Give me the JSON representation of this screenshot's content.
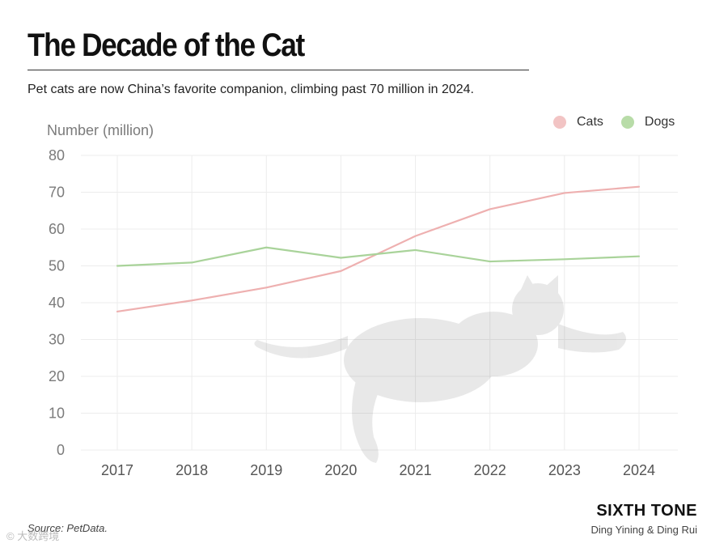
{
  "header": {
    "title": "The Decade of the Cat",
    "subtitle": "Pet cats are now China’s favorite companion, climbing past 70 million in 2024."
  },
  "footer": {
    "source": "Source: PetData.",
    "brand": "SIXTH TONE",
    "authors": "Ding Yining & Ding Rui",
    "watermark": "© 大数跨境"
  },
  "chart_data": {
    "type": "line",
    "ylabel": "Number (million)",
    "xlabel": "",
    "ylim": [
      0,
      80
    ],
    "yticks": [
      0,
      10,
      20,
      30,
      40,
      50,
      60,
      70,
      80
    ],
    "x": [
      "2017",
      "2018",
      "2019",
      "2020",
      "2021",
      "2022",
      "2023",
      "2024"
    ],
    "grid": true,
    "legend_position": "top-right",
    "series": [
      {
        "name": "Cats",
        "color": "#eeb0b0",
        "values": [
          37.6,
          40.6,
          44.1,
          48.6,
          58.1,
          65.4,
          69.8,
          71.5
        ]
      },
      {
        "name": "Dogs",
        "color": "#a9d39a",
        "values": [
          50.0,
          50.9,
          55.0,
          52.2,
          54.3,
          51.2,
          51.8,
          52.6
        ]
      }
    ],
    "background_icon": "cat-silhouette"
  }
}
